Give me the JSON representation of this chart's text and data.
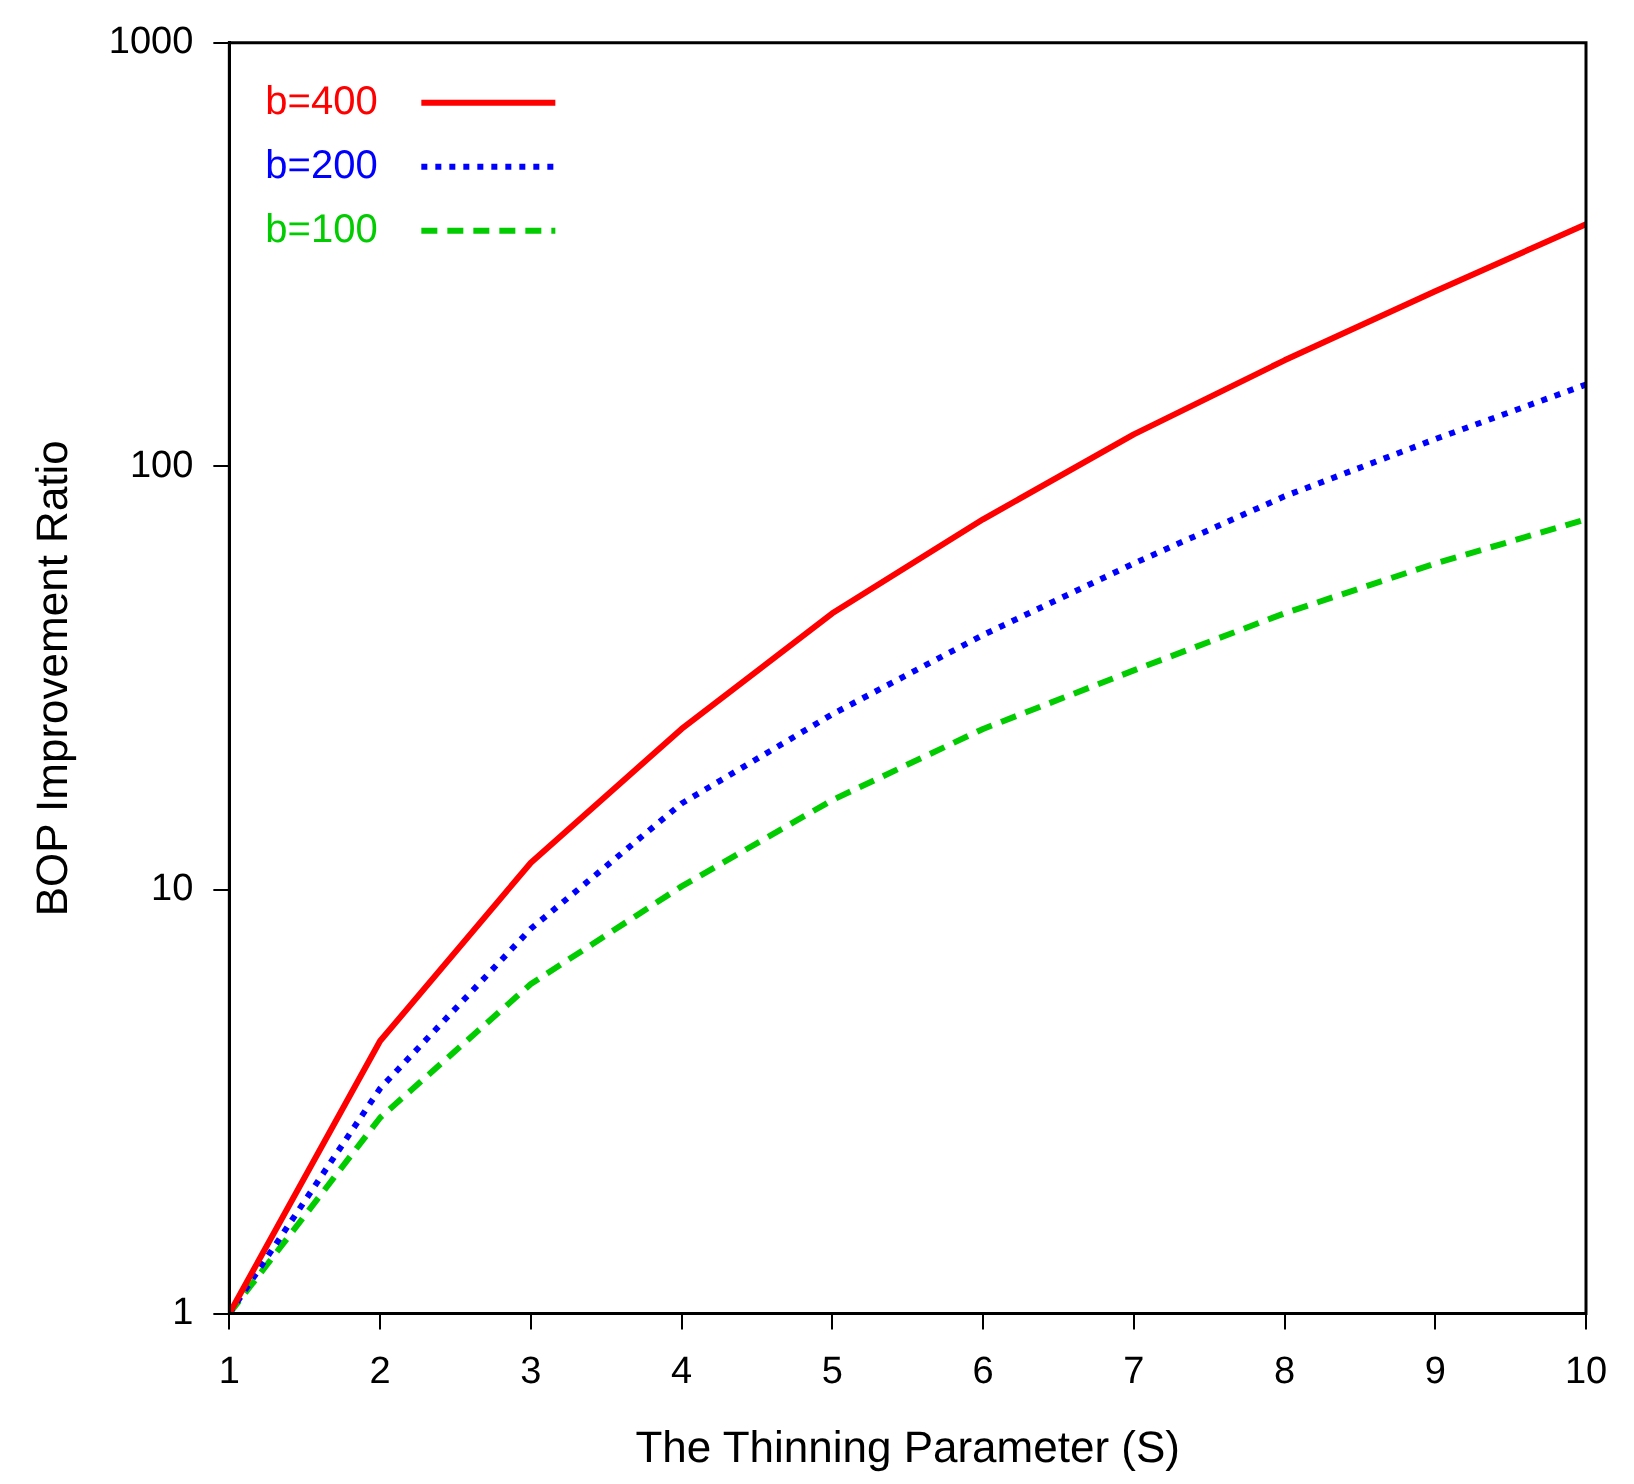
{
  "chart_data": {
    "type": "line",
    "xlabel": "The Thinning Parameter (S)",
    "ylabel": "BOP Improvement Ratio",
    "x": [
      1,
      2,
      3,
      4,
      5,
      6,
      7,
      8,
      9,
      10
    ],
    "log": "y",
    "xlim": [
      1,
      10
    ],
    "xticks": [
      1,
      2,
      3,
      4,
      5,
      6,
      7,
      8,
      9,
      10
    ],
    "ylim": [
      1,
      1000
    ],
    "yticks": [
      1,
      10,
      100,
      1000
    ],
    "grid": false,
    "legend": "top left",
    "marker": "none",
    "series": [
      {
        "name": "b=400",
        "color": "#ff0000",
        "line_style": "solid",
        "values": [
          1,
          4.4,
          11.6,
          24,
          45,
          75,
          119,
          178,
          259,
          373
        ]
      },
      {
        "name": "b=200",
        "color": "#0000ff",
        "line_style": "dotted",
        "values": [
          1,
          3.4,
          8.1,
          16,
          26,
          40,
          59,
          85,
          116,
          156
        ]
      },
      {
        "name": "b=100",
        "color": "#00cc00",
        "line_style": "dashed",
        "values": [
          1,
          2.9,
          6.0,
          10.2,
          16.3,
          24,
          33,
          45,
          59,
          75
        ]
      }
    ]
  }
}
